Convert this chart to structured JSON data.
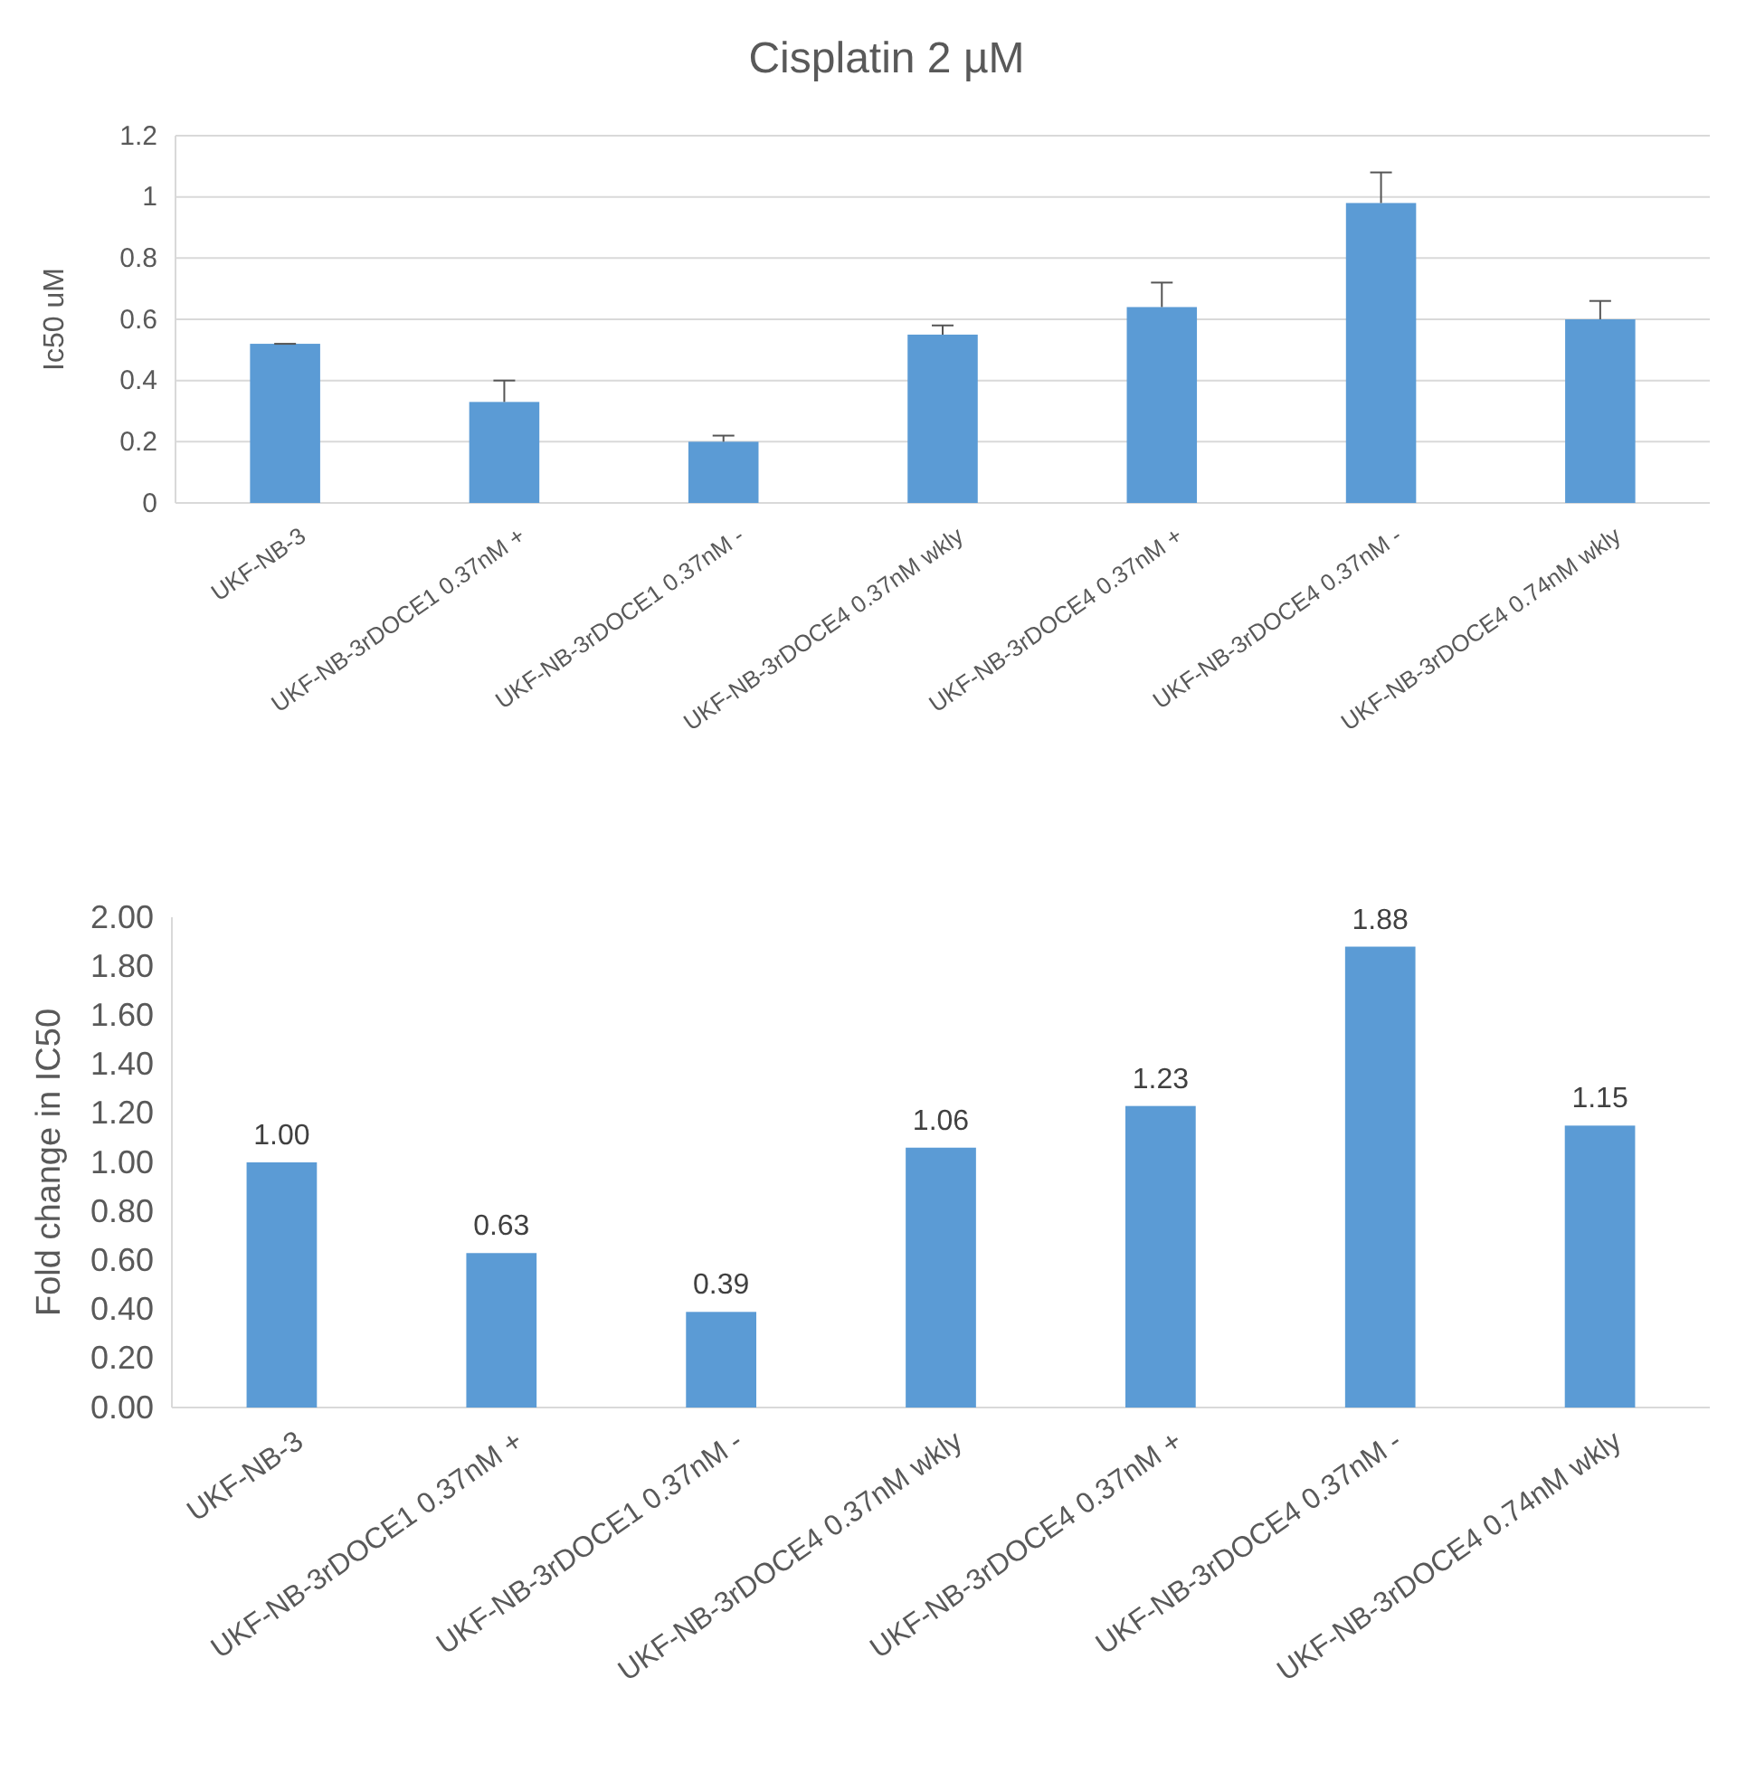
{
  "chart_data": [
    {
      "type": "bar",
      "title": "Cisplatin 2 µM",
      "ylabel": "Ic50 uM",
      "categories": [
        "UKF-NB-3",
        "UKF-NB-3rDOCE1 0.37nM +",
        "UKF-NB-3rDOCE1 0.37nM -",
        "UKF-NB-3rDOCE4 0.37nM wkly",
        "UKF-NB-3rDOCE4 0.37nM +",
        "UKF-NB-3rDOCE4 0.37nM -",
        "UKF-NB-3rDOCE4 0.74nM wkly"
      ],
      "values": [
        0.52,
        0.33,
        0.2,
        0.55,
        0.64,
        0.98,
        0.6
      ],
      "errors": [
        [
          0.52,
          0.52
        ],
        [
          0.33,
          0.4
        ],
        [
          0.2,
          0.22
        ],
        [
          0.55,
          0.58
        ],
        [
          0.64,
          0.72
        ],
        [
          0.98,
          1.08
        ],
        [
          0.6,
          0.66
        ]
      ],
      "color": "#5b9bd5",
      "ylim": [
        0,
        1.2
      ],
      "yticks": [
        0,
        0.2,
        0.4,
        0.6,
        0.8,
        1,
        1.2
      ],
      "grid": "y"
    },
    {
      "type": "bar",
      "ylabel": "Fold change in IC50",
      "categories": [
        "UKF-NB-3",
        "UKF-NB-3rDOCE1 0.37nM +",
        "UKF-NB-3rDOCE1 0.37nM -",
        "UKF-NB-3rDOCE4 0.37nM wkly",
        "UKF-NB-3rDOCE4 0.37nM +",
        "UKF-NB-3rDOCE4 0.37nM -",
        "UKF-NB-3rDOCE4 0.74nM wkly"
      ],
      "values": [
        1.0,
        0.63,
        0.39,
        1.06,
        1.23,
        1.88,
        1.15
      ],
      "value_labels": [
        "1.00",
        "0.63",
        "0.39",
        "1.06",
        "1.23",
        "1.88",
        "1.15"
      ],
      "color": "#5b9bd5",
      "ylim": [
        0,
        2
      ],
      "yticks": [
        {
          "value": 0,
          "label": "0.00"
        },
        {
          "value": 0.2,
          "label": "0.20"
        },
        {
          "value": 0.4,
          "label": "0.40"
        },
        {
          "value": 0.6,
          "label": "0.60"
        },
        {
          "value": 0.8,
          "label": "0.80"
        },
        {
          "value": 1,
          "label": "1.00"
        },
        {
          "value": 1.2,
          "label": "1.20"
        },
        {
          "value": 1.4,
          "label": "1.40"
        },
        {
          "value": 1.6,
          "label": "1.60"
        },
        {
          "value": 1.8,
          "label": "1.80"
        },
        {
          "value": 2,
          "label": "2.00"
        }
      ]
    }
  ]
}
